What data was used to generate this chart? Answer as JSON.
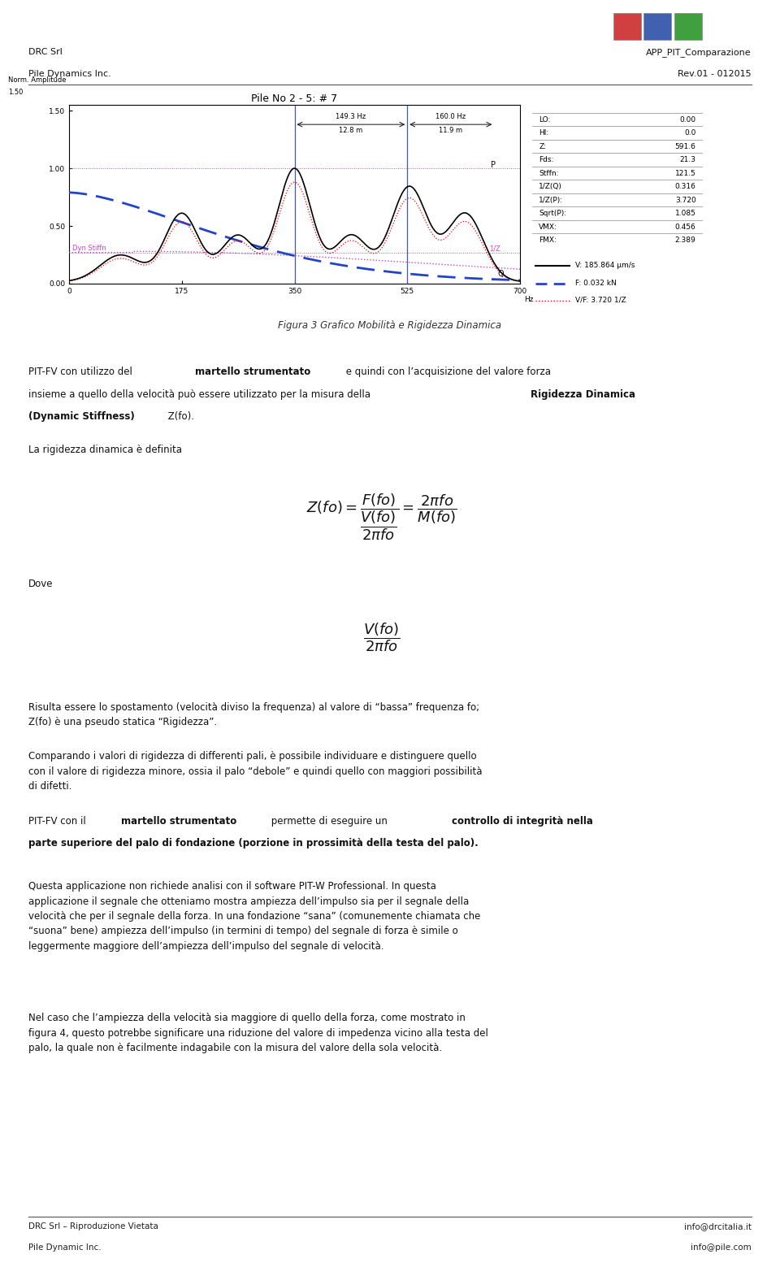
{
  "page_width": 9.6,
  "page_height": 15.54,
  "bg_color": "#ffffff",
  "header_left_line1": "DRC Srl",
  "header_left_line2": "Pile Dynamics Inc.",
  "header_right_line1": "APP_PIT_Comparazione",
  "header_right_line2": "Rev.01 - 012015",
  "footer_left_line1": "DRC Srl – Riproduzione Vietata",
  "footer_left_line2": "Pile Dynamic Inc.",
  "footer_right_line1": "info@drcitalia.it",
  "footer_right_line2": "info@pile.com",
  "figure_caption": "Figura 3 Grafico Mobilità e Rigidezza Dinamica",
  "section_label": "La rigidezza dinamica è definita",
  "label_dove": "Dove",
  "body_para2": "Risulta essere lo spostamento (velocità diviso la frequenza) al valore di “bassa” frequenza fo;\nZ(fo) è una pseudo statica “Rigidezza”.",
  "body_para3": "Comparando i valori di rigidezza di differenti pali, è possibile individuare e distinguere quello\ncon il valore di rigidezza minore, ossia il palo “debole” e quindi quello con maggiori possibilità\ndi difetti.",
  "body_para5": "Questa applicazione non richiede analisi con il software PIT-W Professional. In questa\napplicazione il segnale che otteniamo mostra ampiezza dell’impulso sia per il segnale della\nvelocità che per il segnale della forza. In una fondazione “sana” (comunemente chiamata che\n“suona” bene) ampiezza dell’impulso (in termini di tempo) del segnale di forza è simile o\nleggermente maggiore dell’ampiezza dell’impulso del segnale di velocità.",
  "body_para6": "Nel caso che l’ampiezza della velocità sia maggiore di quello della forza, come mostrato in\nfigura 4, questo potrebbe significare una riduzione del valore di impedenza vicino alla testa del\npalo, la quale non è facilmente indagabile con la misura del valore della sola velocità."
}
